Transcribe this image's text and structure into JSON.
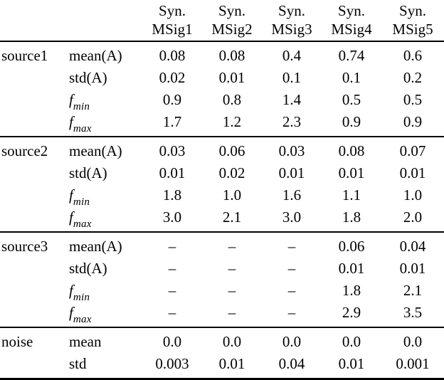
{
  "table": {
    "header": {
      "columns": [
        {
          "line1": "Syn.",
          "line2": "MSig1"
        },
        {
          "line1": "Syn.",
          "line2": "MSig2"
        },
        {
          "line1": "Syn.",
          "line2": "MSig3"
        },
        {
          "line1": "Syn.",
          "line2": "MSig4"
        },
        {
          "line1": "Syn.",
          "line2": "MSig5"
        }
      ]
    },
    "groups": [
      {
        "name": "source1",
        "rows": [
          {
            "label": "mean(A)",
            "values": [
              "0.08",
              "0.08",
              "0.4",
              "0.74",
              "0.6"
            ]
          },
          {
            "label": "std(A)",
            "values": [
              "0.02",
              "0.01",
              "0.1",
              "0.1",
              "0.2"
            ]
          },
          {
            "label": "f_min",
            "values": [
              "0.9",
              "0.8",
              "1.4",
              "0.5",
              "0.5"
            ]
          },
          {
            "label": "f_max",
            "values": [
              "1.7",
              "1.2",
              "2.3",
              "0.9",
              "0.9"
            ]
          }
        ]
      },
      {
        "name": "source2",
        "rows": [
          {
            "label": "mean(A)",
            "values": [
              "0.03",
              "0.06",
              "0.03",
              "0.08",
              "0.07"
            ]
          },
          {
            "label": "std(A)",
            "values": [
              "0.01",
              "0.02",
              "0.01",
              "0.01",
              "0.01"
            ]
          },
          {
            "label": "f_min",
            "values": [
              "1.8",
              "1.0",
              "1.6",
              "1.1",
              "1.0"
            ]
          },
          {
            "label": "f_max",
            "values": [
              "3.0",
              "2.1",
              "3.0",
              "1.8",
              "2.0"
            ]
          }
        ]
      },
      {
        "name": "source3",
        "rows": [
          {
            "label": "mean(A)",
            "values": [
              "–",
              "–",
              "–",
              "0.06",
              "0.04"
            ]
          },
          {
            "label": "std(A)",
            "values": [
              "–",
              "–",
              "–",
              "0.01",
              "0.01"
            ]
          },
          {
            "label": "f_min",
            "values": [
              "–",
              "–",
              "–",
              "1.8",
              "2.1"
            ]
          },
          {
            "label": "f_max",
            "values": [
              "–",
              "–",
              "–",
              "2.9",
              "3.5"
            ]
          }
        ]
      },
      {
        "name": "noise",
        "rows": [
          {
            "label": "mean",
            "values": [
              "0.0",
              "0.0",
              "0.0",
              "0.0",
              "0.0"
            ]
          },
          {
            "label": "std",
            "values": [
              "0.003",
              "0.01",
              "0.04",
              "0.01",
              "0.001"
            ]
          }
        ]
      }
    ]
  },
  "colors": {
    "text": "#000000",
    "background": "#ffffff",
    "rule": "#000000"
  }
}
